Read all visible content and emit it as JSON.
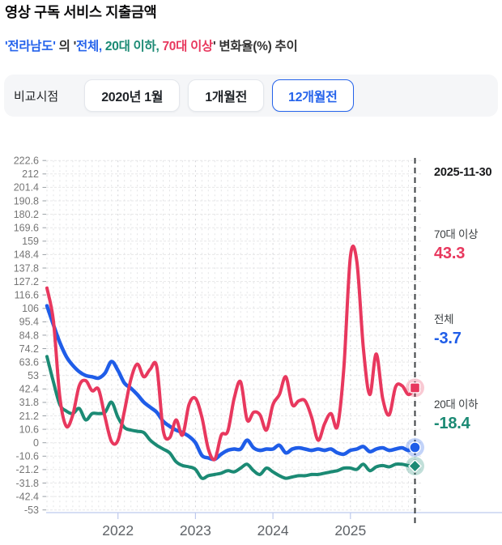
{
  "header": {
    "title": "영상 구독 서비스 지출금액",
    "subtitle_parts": [
      {
        "text": "'전라남도'",
        "color": "blue"
      },
      {
        "text": " 의 '",
        "color": "dark"
      },
      {
        "text": "전체, ",
        "color": "blue"
      },
      {
        "text": "20대 이하, ",
        "color": "teal"
      },
      {
        "text": "70대 이상",
        "color": "red"
      },
      {
        "text": "' 변화율(%) 추이",
        "color": "dark"
      }
    ]
  },
  "colors": {
    "blue": "#2563eb",
    "teal": "#1b8a74",
    "red": "#e8385e",
    "dark": "#333333"
  },
  "controls": {
    "label": "비교시점",
    "buttons": [
      {
        "label": "2020년 1월",
        "selected": false
      },
      {
        "label": "1개월전",
        "selected": false
      },
      {
        "label": "12개월전",
        "selected": true
      }
    ]
  },
  "chart_data": {
    "type": "line",
    "title": "영상 구독 서비스 지출금액 — 전라남도 변화율(%) 추이",
    "as_of_date": "2025-11-30",
    "ylim": [
      -53,
      222.6
    ],
    "grid": true,
    "legend_position": "right-panel",
    "y_ticks": [
      222.6,
      212,
      201.4,
      190.8,
      180.2,
      169.6,
      159,
      148.4,
      137.8,
      127.2,
      116.6,
      106,
      95.4,
      84.8,
      74.2,
      63.6,
      53,
      42.4,
      31.8,
      21.2,
      10.6,
      0,
      -10.6,
      -21.2,
      -31.8,
      -42.4,
      -53
    ],
    "x_year_ticks": [
      {
        "label": "2022",
        "month_index": 11
      },
      {
        "label": "2023",
        "month_index": 23
      },
      {
        "label": "2024",
        "month_index": 35
      },
      {
        "label": "2025",
        "month_index": 47
      }
    ],
    "series": [
      {
        "name": "전체",
        "color": "#1f5de8",
        "marker": "circle",
        "width": 4.5,
        "end_value": -3.7,
        "values": [
          108,
          93,
          79,
          68,
          61,
          56,
          53,
          52,
          51,
          55,
          64,
          57,
          47,
          43,
          38,
          32,
          28,
          24,
          17,
          13,
          10,
          8,
          5,
          0,
          -10,
          -12,
          -13,
          -9,
          -6,
          -5,
          -5,
          2,
          -4,
          -6,
          -5,
          -5,
          -2,
          -8,
          -5,
          -4,
          -5,
          -6,
          -5,
          -6,
          -5,
          -8,
          -9,
          -6,
          -5,
          -3,
          -7,
          -5,
          -4,
          -6,
          -5,
          -4,
          -6,
          -3.7
        ]
      },
      {
        "name": "20대 이하",
        "color": "#1b8a74",
        "marker": "diamond",
        "width": 4,
        "end_value": -18.4,
        "values": [
          68,
          48,
          30,
          25,
          23,
          27,
          18,
          23,
          23,
          24,
          32,
          20,
          12,
          10,
          9,
          8,
          2,
          -2,
          -5,
          -8,
          -15,
          -18,
          -19,
          -21,
          -28,
          -26,
          -25,
          -24,
          -22,
          -23,
          -20,
          -17,
          -22,
          -25,
          -20,
          -23,
          -26,
          -28,
          -27,
          -26,
          -26,
          -25,
          -25,
          -24,
          -23,
          -22,
          -20,
          -20,
          -21,
          -17,
          -22,
          -19,
          -18,
          -19,
          -17,
          -17,
          -18,
          -18.4
        ]
      },
      {
        "name": "70대 이상",
        "color": "#e8385e",
        "marker": "square",
        "width": 4,
        "end_value": 43.3,
        "values": [
          122,
          96,
          36,
          13,
          22,
          45,
          49,
          41,
          42,
          20,
          1,
          2,
          25,
          50,
          62,
          52,
          58,
          60,
          10,
          4,
          18,
          6,
          30,
          35,
          20,
          -5,
          -13,
          6,
          9,
          35,
          48,
          18,
          24,
          22,
          10,
          30,
          38,
          52,
          30,
          33,
          33,
          20,
          2,
          15,
          23,
          13,
          60,
          147,
          143,
          75,
          38,
          70,
          35,
          22,
          44,
          45,
          38,
          43.3
        ]
      }
    ],
    "end_labels": [
      {
        "name": "70대 이상",
        "value": "43.3",
        "color": "#e8385e"
      },
      {
        "name": "전체",
        "value": "-3.7",
        "color": "#1f5de8"
      },
      {
        "name": "20대 이하",
        "value": "-18.4",
        "color": "#1b8a74"
      }
    ]
  }
}
